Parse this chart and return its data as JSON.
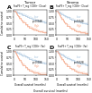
{
  "panels": [
    {
      "label": "A",
      "title": "Tumor",
      "subtitle": "FoxP3+ T_reg / CD8+ (Close)",
      "pvalue": "p=0.048",
      "low_color": "#aec8e0",
      "high_color": "#f4a88a",
      "low_label": "Low",
      "high_label": "High"
    },
    {
      "label": "B",
      "title": "Stroma",
      "subtitle": "FoxP3+ T_reg / CD8+ (Close)",
      "pvalue": "p=0.048",
      "low_color": "#aec8e0",
      "high_color": "#f4a88a",
      "low_label": "Low",
      "high_label": "High"
    },
    {
      "label": "C",
      "title": "",
      "subtitle": "FoxP3+ T_reg / CD8+ (Far)",
      "pvalue": "p=0.006",
      "low_color": "#aec8e0",
      "high_color": "#f4a88a",
      "low_label": "Low",
      "high_label": "High"
    },
    {
      "label": "D",
      "title": "",
      "subtitle": "FoxP3+ T_reg / CD8+ (Far)",
      "pvalue": "p=0.028",
      "low_color": "#aec8e0",
      "high_color": "#f4a88a",
      "low_label": "Low",
      "high_label": "High"
    }
  ],
  "xlabel": "Overall survival (months)",
  "ylabel": "Cumulative survival",
  "xlim": [
    0,
    150
  ],
  "ylim": [
    0,
    1.05
  ],
  "xticks": [
    0,
    50,
    100,
    150
  ],
  "yticks": [
    0.0,
    0.25,
    0.5,
    0.75,
    1.0
  ],
  "background_color": "#ffffff",
  "low_curves": [
    {
      "x": [
        0,
        5,
        10,
        15,
        20,
        25,
        30,
        35,
        40,
        50,
        60,
        70,
        80,
        90,
        100,
        110,
        120,
        130,
        140,
        150
      ],
      "y": [
        1.0,
        0.98,
        0.96,
        0.94,
        0.92,
        0.9,
        0.87,
        0.85,
        0.83,
        0.79,
        0.75,
        0.71,
        0.67,
        0.64,
        0.61,
        0.58,
        0.56,
        0.54,
        0.52,
        0.5
      ]
    },
    {
      "x": [
        0,
        5,
        10,
        15,
        20,
        25,
        30,
        35,
        40,
        50,
        60,
        70,
        80,
        90,
        100,
        110,
        120,
        130,
        140,
        150
      ],
      "y": [
        1.0,
        0.97,
        0.95,
        0.92,
        0.89,
        0.86,
        0.83,
        0.8,
        0.77,
        0.73,
        0.68,
        0.64,
        0.6,
        0.57,
        0.54,
        0.51,
        0.49,
        0.47,
        0.45,
        0.43
      ]
    },
    {
      "x": [
        0,
        5,
        10,
        15,
        20,
        25,
        30,
        35,
        40,
        50,
        60,
        70,
        80,
        90,
        100,
        110,
        120,
        130,
        140,
        150
      ],
      "y": [
        1.0,
        0.98,
        0.96,
        0.94,
        0.92,
        0.9,
        0.87,
        0.84,
        0.82,
        0.77,
        0.73,
        0.69,
        0.65,
        0.62,
        0.59,
        0.56,
        0.54,
        0.52,
        0.5,
        0.48
      ]
    },
    {
      "x": [
        0,
        5,
        10,
        15,
        20,
        25,
        30,
        35,
        40,
        50,
        60,
        70,
        80,
        90,
        100,
        110,
        120,
        130,
        140,
        150
      ],
      "y": [
        1.0,
        0.97,
        0.94,
        0.91,
        0.88,
        0.85,
        0.82,
        0.79,
        0.76,
        0.71,
        0.66,
        0.62,
        0.58,
        0.55,
        0.52,
        0.49,
        0.47,
        0.45,
        0.43,
        0.41
      ]
    }
  ],
  "high_curves": [
    {
      "x": [
        0,
        5,
        10,
        15,
        20,
        25,
        30,
        35,
        40,
        50,
        60,
        70,
        80,
        90,
        100,
        110,
        120,
        130,
        140,
        150
      ],
      "y": [
        1.0,
        0.95,
        0.89,
        0.83,
        0.76,
        0.7,
        0.64,
        0.58,
        0.53,
        0.44,
        0.37,
        0.31,
        0.26,
        0.22,
        0.19,
        0.16,
        0.14,
        0.12,
        0.1,
        0.09
      ]
    },
    {
      "x": [
        0,
        5,
        10,
        15,
        20,
        25,
        30,
        35,
        40,
        50,
        60,
        70,
        80,
        90,
        100,
        110,
        120,
        130,
        140,
        150
      ],
      "y": [
        1.0,
        0.94,
        0.87,
        0.8,
        0.73,
        0.66,
        0.59,
        0.53,
        0.47,
        0.38,
        0.3,
        0.24,
        0.19,
        0.16,
        0.13,
        0.1,
        0.09,
        0.07,
        0.06,
        0.05
      ]
    },
    {
      "x": [
        0,
        5,
        10,
        15,
        20,
        25,
        30,
        35,
        40,
        50,
        60,
        70,
        80,
        90,
        100,
        110,
        120,
        130,
        140,
        150
      ],
      "y": [
        1.0,
        0.93,
        0.86,
        0.78,
        0.7,
        0.63,
        0.56,
        0.49,
        0.43,
        0.33,
        0.26,
        0.2,
        0.16,
        0.12,
        0.1,
        0.08,
        0.06,
        0.05,
        0.04,
        0.03
      ]
    },
    {
      "x": [
        0,
        5,
        10,
        15,
        20,
        25,
        30,
        35,
        40,
        50,
        60,
        70,
        80,
        90,
        100,
        110,
        120,
        130,
        140,
        150
      ],
      "y": [
        1.0,
        0.94,
        0.88,
        0.81,
        0.74,
        0.67,
        0.6,
        0.54,
        0.48,
        0.39,
        0.31,
        0.25,
        0.2,
        0.16,
        0.13,
        0.11,
        0.09,
        0.07,
        0.06,
        0.05
      ]
    }
  ],
  "low_ci_upper": 0.06,
  "low_ci_lower": 0.06,
  "high_ci_upper": 0.06,
  "high_ci_lower": 0.06
}
